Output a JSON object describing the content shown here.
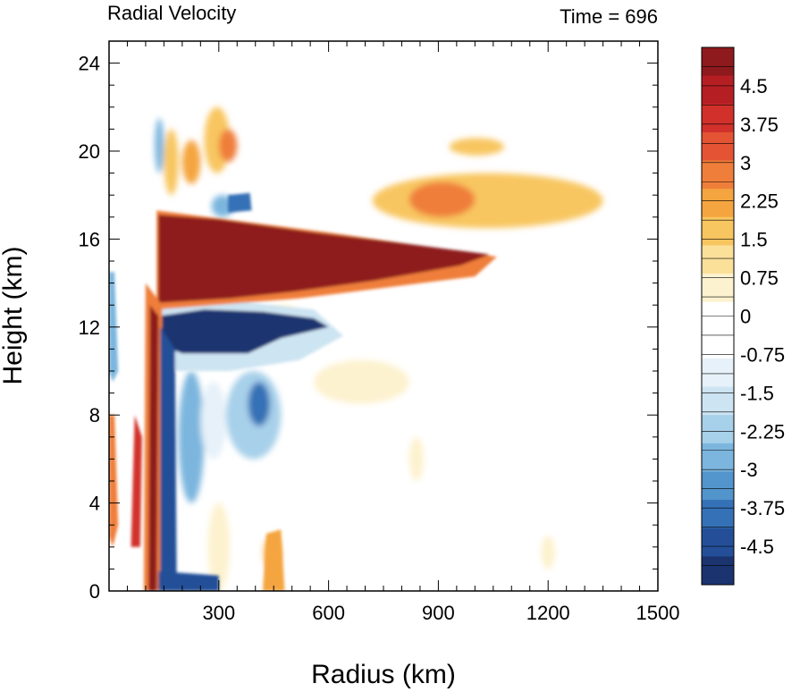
{
  "chart_data": {
    "type": "heatmap",
    "title_left": "Radial Velocity",
    "title_right": "Time = 696",
    "xlabel": "Radius (km)",
    "ylabel": "Height (km)",
    "xlim": [
      0,
      1500
    ],
    "ylim": [
      0,
      25
    ],
    "x_ticks": [
      300,
      600,
      900,
      1200,
      1500
    ],
    "y_ticks": [
      0,
      4,
      8,
      12,
      16,
      20,
      24
    ],
    "colorbar": {
      "levels": [
        -5.25,
        5.25
      ],
      "labels": [
        "4.5",
        "3.75",
        "3",
        "2.25",
        "1.5",
        "0.75",
        "0",
        "-0.75",
        "-1.5",
        "-2.25",
        "-3",
        "-3.75",
        "-4.5"
      ],
      "label_values": [
        4.5,
        3.75,
        3,
        2.25,
        1.5,
        0.75,
        0,
        -0.75,
        -1.5,
        -2.25,
        -3,
        -3.75,
        -4.5
      ],
      "colors_top_to_bottom": [
        "#8e1a1e",
        "#b51f24",
        "#d1302b",
        "#e45434",
        "#ef7e3a",
        "#f5a540",
        "#f8c660",
        "#fbe09a",
        "#fdf2cf",
        "#ffffff",
        "#ffffff",
        "#e6f1f9",
        "#cde4f2",
        "#a7d0ea",
        "#7cb6de",
        "#5294cc",
        "#3571b6",
        "#244f98",
        "#1b3470"
      ]
    },
    "features": [
      {
        "name": "upper outflow (positive)",
        "x_range": [
          130,
          1040
        ],
        "y_range": [
          13,
          17
        ],
        "value": 5.5
      },
      {
        "name": "inflow beneath outflow (negative)",
        "x_range": [
          130,
          620
        ],
        "y_range": [
          10.5,
          12.8
        ],
        "value": -5.5
      },
      {
        "name": "eyewall updraft column (positive)",
        "x_range": [
          100,
          140
        ],
        "y_range": [
          0,
          13
        ],
        "value": 4.5
      },
      {
        "name": "eyewall inner column (negative)",
        "x_range": [
          140,
          185
        ],
        "y_range": [
          0,
          12
        ],
        "value": -4.5
      },
      {
        "name": "boundary layer inflow (negative)",
        "x_range": [
          130,
          270
        ],
        "y_range": [
          0,
          0.8
        ],
        "value": -4.5
      },
      {
        "name": "outer rainband (positive)",
        "x_range": [
          440,
          490
        ],
        "y_range": [
          0,
          3
        ],
        "value": 2.5
      },
      {
        "name": "upper level outflow (positive)",
        "x_range": [
          720,
          1350
        ],
        "y_range": [
          16.5,
          19
        ],
        "value": 1.8
      }
    ]
  }
}
